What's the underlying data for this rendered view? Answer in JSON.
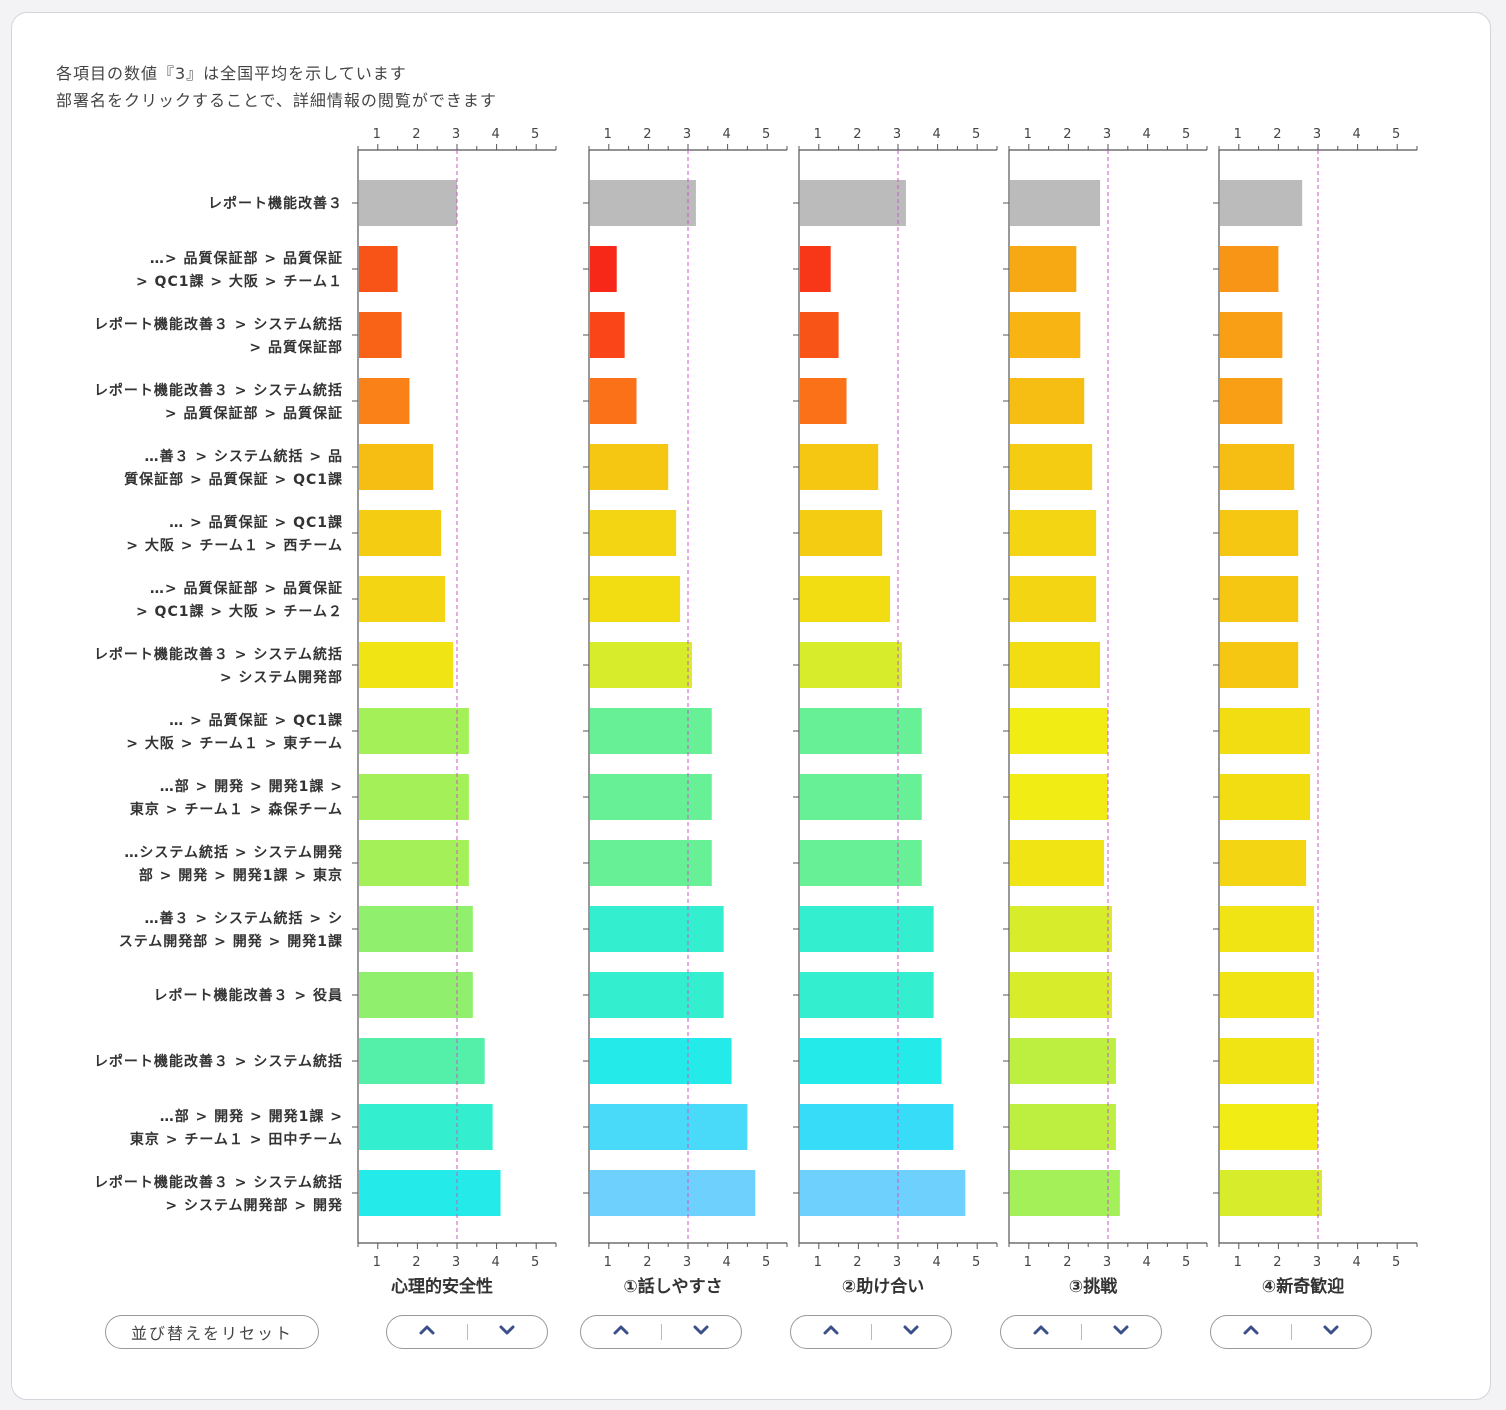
{
  "notes": [
    "各項目の数値『3』は全国平均を示しています",
    "部署名をクリックすることで、詳細情報の閲覧ができます"
  ],
  "reset_button": "並び替えをリセット",
  "sort_icons": {
    "up": "chevron-up-icon",
    "down": "chevron-down-icon"
  },
  "chart_data": {
    "type": "bar",
    "orientation": "horizontal",
    "xlim": [
      0.5,
      5.5
    ],
    "ticks": [
      1,
      2,
      3,
      4,
      5
    ],
    "reference_line": 3,
    "reference_line_color": "#cc55cc",
    "highlight_color": "#bbbbbb",
    "categories": [
      [
        "レポート機能改善３"
      ],
      [
        "…> 品質保証部 > 品質保証",
        "> QC1課 > 大阪 > チーム１"
      ],
      [
        "レポート機能改善３ > システム統括",
        "> 品質保証部"
      ],
      [
        "レポート機能改善３ > システム統括",
        "> 品質保証部 > 品質保証"
      ],
      [
        "…善３ > システム統括 > 品",
        "質保証部 > 品質保証 > QC1課"
      ],
      [
        "… > 品質保証 > QC1課",
        "> 大阪 > チーム１ > 西チーム"
      ],
      [
        "…> 品質保証部 > 品質保証",
        "> QC1課 > 大阪 > チーム２"
      ],
      [
        "レポート機能改善３ > システム統括",
        "> システム開発部"
      ],
      [
        "… > 品質保証 > QC1課",
        "> 大阪 > チーム１ > 東チーム"
      ],
      [
        "…部 > 開発 > 開発1課 >",
        "東京 > チーム１ > 森保チーム"
      ],
      [
        "…システム統括 > システム開発",
        "部 > 開発 > 開発1課 > 東京"
      ],
      [
        "…善３ > システム統括 > シ",
        "ステム開発部 > 開発 > 開発1課"
      ],
      [
        "レポート機能改善３ > 役員"
      ],
      [
        "レポート機能改善３ > システム統括"
      ],
      [
        "…部 > 開発 > 開発1課 >",
        "東京 > チーム１ > 田中チーム"
      ],
      [
        "レポート機能改善３ > システム統括",
        "> システム開発部 > 開発"
      ]
    ],
    "series": [
      {
        "name": "心理的安全性",
        "values": [
          3.0,
          1.5,
          1.6,
          1.8,
          2.4,
          2.6,
          2.7,
          2.9,
          3.3,
          3.3,
          3.3,
          3.4,
          3.4,
          3.7,
          3.9,
          4.1
        ]
      },
      {
        "name": "①話しやすさ",
        "values": [
          3.2,
          1.2,
          1.4,
          1.7,
          2.5,
          2.7,
          2.8,
          3.1,
          3.6,
          3.6,
          3.6,
          3.9,
          3.9,
          4.1,
          4.5,
          4.7
        ]
      },
      {
        "name": "②助け合い",
        "values": [
          3.2,
          1.3,
          1.5,
          1.7,
          2.5,
          2.6,
          2.8,
          3.1,
          3.6,
          3.6,
          3.6,
          3.9,
          3.9,
          4.1,
          4.4,
          4.7
        ]
      },
      {
        "name": "③挑戦",
        "values": [
          2.8,
          2.2,
          2.3,
          2.4,
          2.6,
          2.7,
          2.7,
          2.8,
          3.0,
          3.0,
          2.9,
          3.1,
          3.1,
          3.2,
          3.2,
          3.3
        ]
      },
      {
        "name": "④新奇歓迎",
        "values": [
          2.6,
          2.0,
          2.1,
          2.1,
          2.4,
          2.5,
          2.5,
          2.5,
          2.8,
          2.8,
          2.7,
          2.9,
          2.9,
          2.9,
          3.0,
          3.1
        ]
      }
    ]
  }
}
